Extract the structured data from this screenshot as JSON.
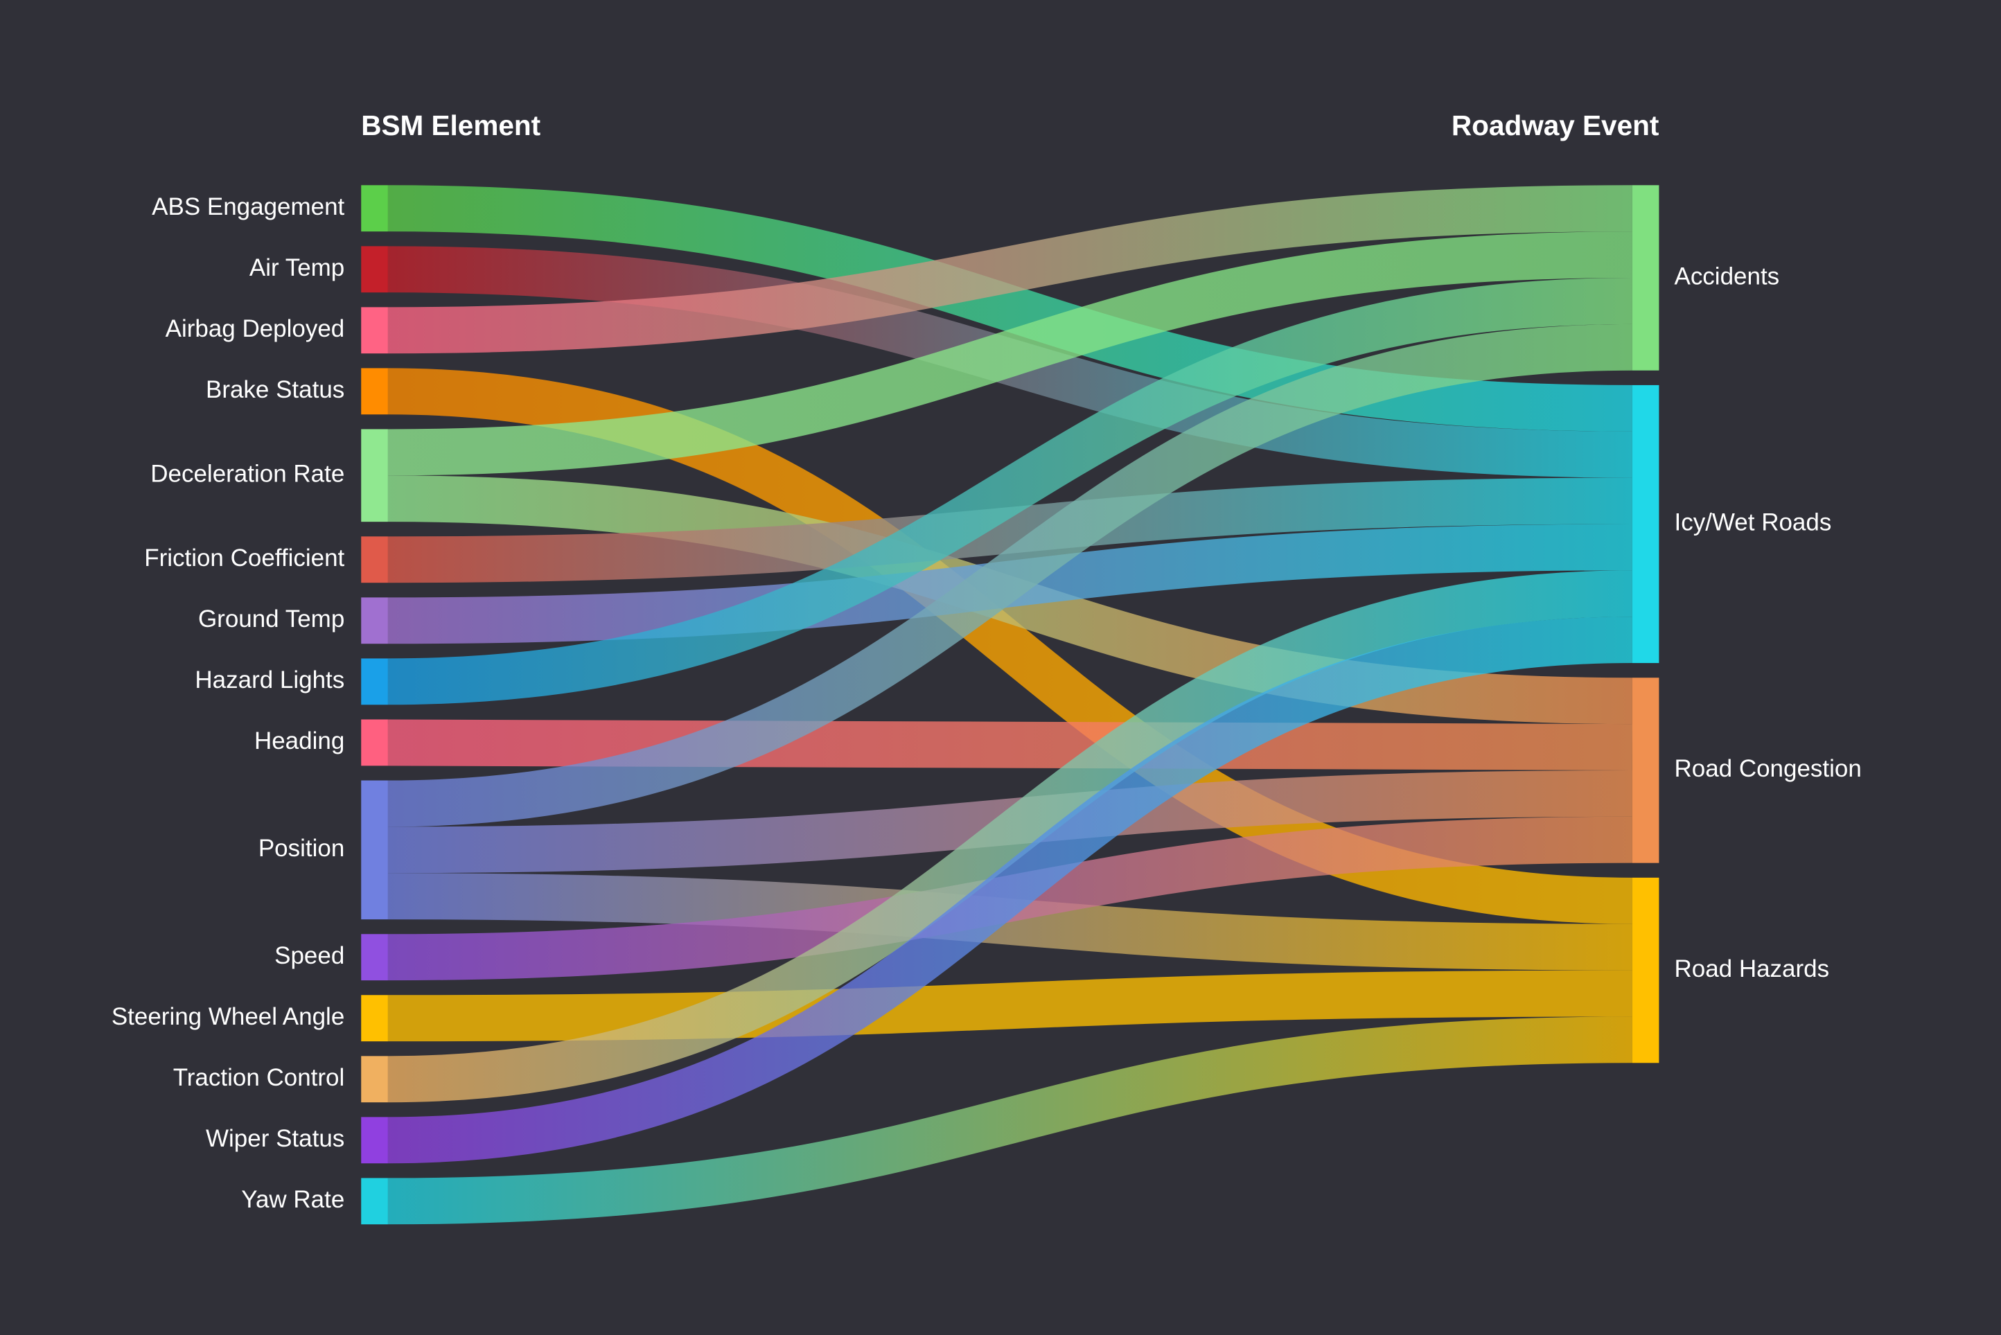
{
  "chart_data": {
    "type": "sankey",
    "column_titles": [
      "BSM Element",
      "Roadway Event"
    ],
    "nodes": [
      {
        "name": "ABS Engagement",
        "color": "#5ccf4a",
        "column": 0
      },
      {
        "name": "Air Temp",
        "color": "#c4202a",
        "column": 0
      },
      {
        "name": "Airbag Deployed",
        "color": "#ff6384",
        "column": 0
      },
      {
        "name": "Brake Status",
        "color": "#ff8c00",
        "column": 0
      },
      {
        "name": "Deceleration Rate",
        "color": "#90e890",
        "column": 0
      },
      {
        "name": "Friction Coefficient",
        "color": "#e05a4a",
        "column": 0
      },
      {
        "name": "Ground Temp",
        "color": "#a070d0",
        "column": 0
      },
      {
        "name": "Hazard Lights",
        "color": "#1aa0e8",
        "column": 0
      },
      {
        "name": "Heading",
        "color": "#ff6080",
        "column": 0
      },
      {
        "name": "Position",
        "color": "#7080e0",
        "column": 0
      },
      {
        "name": "Speed",
        "color": "#9050e0",
        "column": 0
      },
      {
        "name": "Steering Wheel Angle",
        "color": "#ffc000",
        "column": 0
      },
      {
        "name": "Traction Control",
        "color": "#f0b060",
        "column": 0
      },
      {
        "name": "Wiper Status",
        "color": "#9040e0",
        "column": 0
      },
      {
        "name": "Yaw Rate",
        "color": "#20d0e0",
        "column": 0
      },
      {
        "name": "Accidents",
        "color": "#80e080",
        "column": 1
      },
      {
        "name": "Icy/Wet Roads",
        "color": "#20d8e8",
        "column": 1
      },
      {
        "name": "Road Congestion",
        "color": "#f09050",
        "column": 1
      },
      {
        "name": "Road Hazards",
        "color": "#ffc000",
        "column": 1
      }
    ],
    "links": [
      {
        "source": 0,
        "target": 16,
        "value": 1
      },
      {
        "source": 1,
        "target": 16,
        "value": 1
      },
      {
        "source": 2,
        "target": 15,
        "value": 1
      },
      {
        "source": 3,
        "target": 18,
        "value": 1
      },
      {
        "source": 4,
        "target": 15,
        "value": 1
      },
      {
        "source": 4,
        "target": 17,
        "value": 1
      },
      {
        "source": 5,
        "target": 16,
        "value": 1
      },
      {
        "source": 6,
        "target": 16,
        "value": 1
      },
      {
        "source": 7,
        "target": 15,
        "value": 1
      },
      {
        "source": 8,
        "target": 17,
        "value": 1
      },
      {
        "source": 9,
        "target": 15,
        "value": 1
      },
      {
        "source": 9,
        "target": 17,
        "value": 1
      },
      {
        "source": 9,
        "target": 18,
        "value": 1
      },
      {
        "source": 10,
        "target": 17,
        "value": 1
      },
      {
        "source": 11,
        "target": 18,
        "value": 1
      },
      {
        "source": 12,
        "target": 16,
        "value": 1
      },
      {
        "source": 13,
        "target": 16,
        "value": 1
      },
      {
        "source": 14,
        "target": 18,
        "value": 1
      }
    ]
  }
}
